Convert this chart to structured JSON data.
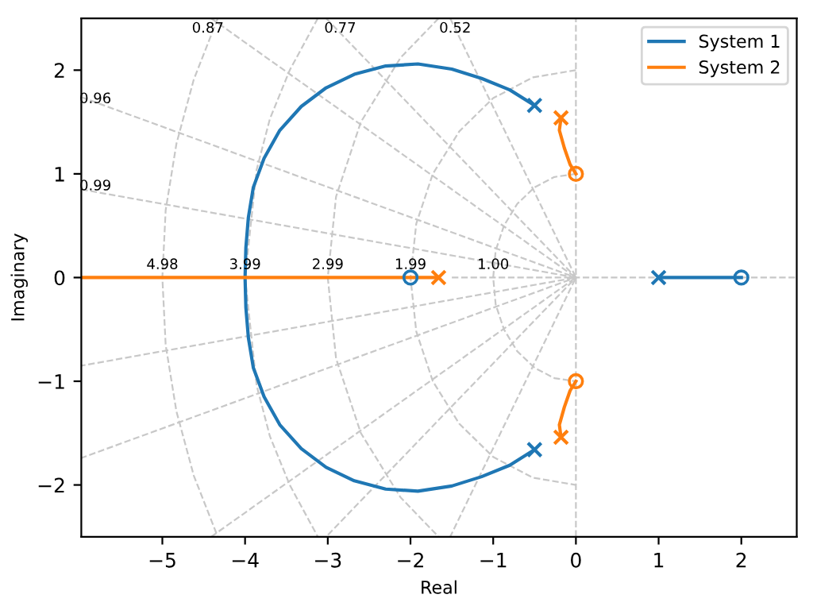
{
  "chart_data": {
    "type": "line",
    "xlabel": "Real",
    "ylabel": "Imaginary",
    "xlim": [
      -5.98,
      2.67
    ],
    "ylim": [
      -2.5,
      2.5
    ],
    "xticks": [
      {
        "value": -5,
        "label": "−5"
      },
      {
        "value": -4,
        "label": "−4"
      },
      {
        "value": -3,
        "label": "−3"
      },
      {
        "value": -2,
        "label": "−2"
      },
      {
        "value": -1,
        "label": "−1"
      },
      0,
      1,
      2
    ],
    "yticks": [
      {
        "value": -2,
        "label": "−2"
      },
      {
        "value": -1,
        "label": "−1"
      },
      0,
      1,
      2
    ],
    "legend": "top right",
    "grid": false,
    "series": [
      {
        "color": "#c8c8c8",
        "line_style": "dashed",
        "x": [
          0,
          0
        ],
        "values": [
          -2.5,
          2.5
        ]
      },
      {
        "color": "#c8c8c8",
        "line_style": "dashed",
        "x": [
          -1.5,
          2.67
        ],
        "values": [
          0,
          0
        ]
      },
      {
        "color": "#c8c8c8",
        "line_style": "dashed",
        "x": [
          0,
          -0.26,
          -0.5,
          -0.71,
          -0.87,
          -0.97,
          -1,
          -0.97,
          -0.87,
          -0.71,
          -0.5,
          -0.26,
          0
        ],
        "values": [
          1,
          0.97,
          0.87,
          0.71,
          0.5,
          0.26,
          0,
          -0.26,
          -0.5,
          -0.71,
          -0.87,
          -0.97,
          -1
        ]
      },
      {
        "color": "#c8c8c8",
        "line_style": "dashed",
        "x": [
          0,
          -0.52,
          -1,
          -1.41,
          -1.73,
          -1.93,
          -2,
          -1.93,
          -1.73,
          -1.41,
          -1,
          -0.52,
          0
        ],
        "values": [
          2,
          1.93,
          1.73,
          1.41,
          1,
          0.52,
          0,
          -0.52,
          -1,
          -1.41,
          -1.73,
          -1.93,
          -2
        ]
      },
      {
        "color": "#c8c8c8",
        "line_style": "dashed",
        "x": [
          -1.66,
          -2.12,
          -2.6,
          -2.9,
          -3,
          -2.9,
          -2.6,
          -2.12,
          -1.66
        ],
        "values": [
          2.5,
          2.12,
          1.5,
          0.78,
          0,
          -0.78,
          -1.5,
          -2.12,
          -2.5
        ]
      },
      {
        "color": "#c8c8c8",
        "line_style": "dashed",
        "x": [
          -3.12,
          -3.46,
          -3.7,
          -3.86,
          -4,
          -3.86,
          -3.7,
          -3.46,
          -3.12
        ],
        "values": [
          2.5,
          2,
          1.53,
          1.04,
          0,
          -1.04,
          -1.53,
          -2,
          -2.5
        ]
      },
      {
        "color": "#c8c8c8",
        "line_style": "dashed",
        "x": [
          -4.33,
          -4.62,
          -4.83,
          -4.96,
          -5,
          -4.96,
          -4.83,
          -4.62,
          -4.33
        ],
        "values": [
          2.5,
          1.91,
          1.29,
          0.65,
          0,
          -0.65,
          -1.29,
          -1.91,
          -2.5
        ]
      },
      {
        "color": "#c8c8c8",
        "line_style": "dashed",
        "x": [
          -5.98,
          0,
          -5.98
        ],
        "values": [
          0.85,
          0,
          -0.85
        ]
      },
      {
        "color": "#c8c8c8",
        "line_style": "dashed",
        "x": [
          -5.98,
          0,
          -5.98
        ],
        "values": [
          1.74,
          0,
          -1.74
        ]
      },
      {
        "color": "#c8c8c8",
        "line_style": "dashed",
        "x": [
          -4.41,
          0,
          -4.41
        ],
        "values": [
          2.5,
          0,
          -2.5
        ]
      },
      {
        "color": "#c8c8c8",
        "line_style": "dashed",
        "x": [
          -3.02,
          0,
          -3.02
        ],
        "values": [
          2.5,
          0,
          -2.5
        ]
      },
      {
        "color": "#c8c8c8",
        "line_style": "dashed",
        "x": [
          -1.52,
          0,
          -1.52
        ],
        "values": [
          2.5,
          0,
          -2.5
        ]
      },
      {
        "name": "System 1",
        "color": "#1f77b4",
        "x": [
          -0.5,
          -0.8,
          -1.14,
          -1.5,
          -1.91,
          -2.3,
          -2.68,
          -3.02,
          -3.32,
          -3.58,
          -3.77,
          -3.9,
          -3.96,
          -3.99,
          -4.0,
          -3.99,
          -3.96,
          -3.9,
          -3.77,
          -3.58,
          -3.32,
          -3.02,
          -2.68,
          -2.3,
          -1.91,
          -1.5,
          -1.14,
          -0.8,
          -0.5
        ],
        "values": [
          1.66,
          1.81,
          1.92,
          2.01,
          2.06,
          2.04,
          1.96,
          1.83,
          1.65,
          1.42,
          1.15,
          0.87,
          0.58,
          0.29,
          0,
          -0.29,
          -0.58,
          -0.87,
          -1.15,
          -1.42,
          -1.65,
          -1.83,
          -1.96,
          -2.04,
          -2.06,
          -2.01,
          -1.92,
          -1.81,
          -1.66
        ]
      },
      {
        "color": "#1f77b4",
        "x": [
          1,
          2
        ],
        "values": [
          0,
          0
        ]
      },
      {
        "type": "scatter",
        "color": "#1f77b4",
        "marker": "cross",
        "x": [
          -0.5,
          -0.5,
          1
        ],
        "values": [
          1.66,
          -1.66,
          0
        ]
      },
      {
        "type": "scatter",
        "color": "#1f77b4",
        "marker": "circle",
        "x": [
          -2,
          2
        ],
        "values": [
          0,
          0
        ]
      },
      {
        "name": "System 2",
        "color": "#ff7f0e",
        "x": [
          -0.18,
          -0.2,
          -0.14,
          -0.07,
          0
        ],
        "values": [
          1.54,
          1.42,
          1.25,
          1.09,
          1.0
        ]
      },
      {
        "color": "#ff7f0e",
        "x": [
          -0.18,
          -0.2,
          -0.14,
          -0.07,
          0
        ],
        "values": [
          -1.54,
          -1.42,
          -1.25,
          -1.09,
          -1.0
        ]
      },
      {
        "color": "#ff7f0e",
        "x": [
          -5.98,
          -1.66
        ],
        "values": [
          0,
          0
        ]
      },
      {
        "type": "scatter",
        "color": "#ff7f0e",
        "marker": "cross",
        "x": [
          -0.18,
          -0.18,
          -1.66
        ],
        "values": [
          1.54,
          -1.54,
          0
        ]
      },
      {
        "type": "scatter",
        "color": "#ff7f0e",
        "marker": "circle",
        "x": [
          0,
          0
        ],
        "values": [
          1,
          -1
        ]
      }
    ],
    "annotations": [
      {
        "text": "0.87",
        "x": -4.45,
        "y": 2.4
      },
      {
        "text": "0.77",
        "x": -2.85,
        "y": 2.4
      },
      {
        "text": "0.52",
        "x": -1.46,
        "y": 2.4
      },
      {
        "text": "0.96",
        "x": -5.81,
        "y": 1.72
      },
      {
        "text": "0.99",
        "x": -5.81,
        "y": 0.88
      },
      {
        "text": "4.98",
        "x": -5.0,
        "y": 0.12
      },
      {
        "text": "3.99",
        "x": -4.0,
        "y": 0.12
      },
      {
        "text": "2.99",
        "x": -3.0,
        "y": 0.12
      },
      {
        "text": "1.99",
        "x": -2.0,
        "y": 0.12
      },
      {
        "text": "1.00",
        "x": -1.0,
        "y": 0.12
      }
    ]
  }
}
